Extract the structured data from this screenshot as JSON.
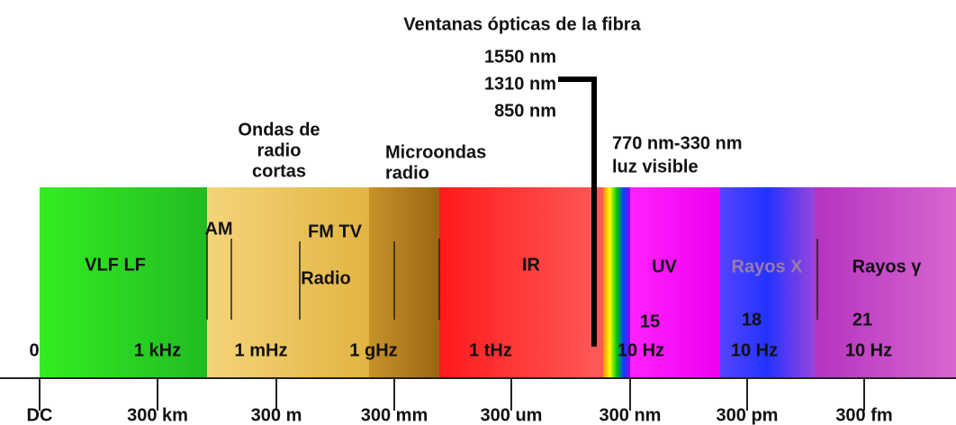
{
  "title": "Ventanas ópticas de la fibra",
  "windows": [
    "1550 nm",
    "1310 nm",
    "850 nm"
  ],
  "regions": {
    "radio_short": [
      "Ondas de",
      "radio",
      "cortas"
    ],
    "microwave": [
      "Microondas",
      "radio"
    ],
    "visible": [
      "770 nm-330 nm",
      "luz visible"
    ]
  },
  "bands": [
    "VLF LF",
    "AM",
    "FM TV",
    "Radio",
    "IR",
    "UV",
    "Rayos X",
    "Rayos γ"
  ],
  "frequencies": [
    "0",
    "1 kHz",
    "1 mHz",
    "1 gHz",
    "1 tHz",
    "10 Hz",
    "10 Hz",
    "10 Hz"
  ],
  "exponents": [
    "15",
    "18",
    "21"
  ],
  "wavelengths": [
    "DC",
    "300 km",
    "300 m",
    "300 mm",
    "300 um",
    "300 nm",
    "300 pm",
    "300 fm"
  ]
}
